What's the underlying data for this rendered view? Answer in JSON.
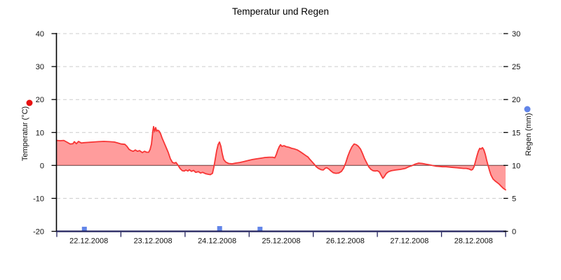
{
  "title": "Temperatur und Regen",
  "y_left": {
    "label": "Temperatur (°C)",
    "min": -20,
    "max": 40,
    "ticks": [
      40,
      30,
      20,
      10,
      0,
      -10,
      -20
    ],
    "grid_ticks": [
      40,
      30,
      20,
      10,
      -10
    ],
    "zero_line": 0
  },
  "y_right": {
    "label": "Regen (mm)",
    "min": 0,
    "max": 30,
    "ticks": [
      30,
      25,
      20,
      15,
      10,
      5,
      0
    ]
  },
  "x_axis": {
    "day_labels": [
      "22.12.2008",
      "23.12.2008",
      "24.12.2008",
      "25.12.2008",
      "26.12.2008",
      "27.12.2008",
      "28.12.2008"
    ]
  },
  "legend": {
    "temperature_marker_color": "#e81111",
    "rain_marker_color": "#6285e8"
  },
  "colors": {
    "temp_stroke": "#f73434",
    "temp_fill": "rgba(255,30,30,0.44)",
    "rain_bar": "#6285e8",
    "grid": "#cccccc",
    "zero_line": "#404040",
    "left_axis": "#000000",
    "x_axis": "#20205c",
    "text": "#111111"
  },
  "chart_data": {
    "type": "combo",
    "title": "Temperatur und Regen",
    "x": {
      "unit": "days since 22.12.2008 00:00",
      "range": [
        0,
        7
      ],
      "tick_dates": [
        "22.12.2008",
        "23.12.2008",
        "24.12.2008",
        "25.12.2008",
        "26.12.2008",
        "27.12.2008",
        "28.12.2008"
      ]
    },
    "y_left_axis": {
      "label": "Temperatur (°C)",
      "range": [
        -20,
        40
      ],
      "grid": "dashed"
    },
    "y_right_axis": {
      "label": "Regen (mm)",
      "range": [
        0,
        30
      ]
    },
    "legend_position": "axis-titles-with-dots",
    "series": [
      {
        "name": "Temperatur",
        "type": "area",
        "axis": "left",
        "unit": "°C",
        "baseline": 0,
        "points": [
          [
            0.0,
            7.6
          ],
          [
            0.055,
            7.5
          ],
          [
            0.109,
            7.6
          ],
          [
            0.164,
            7.0
          ],
          [
            0.208,
            6.5
          ],
          [
            0.252,
            6.6
          ],
          [
            0.273,
            7.2
          ],
          [
            0.306,
            6.6
          ],
          [
            0.339,
            7.3
          ],
          [
            0.383,
            6.8
          ],
          [
            0.427,
            6.9
          ],
          [
            0.492,
            7.0
          ],
          [
            0.569,
            7.1
          ],
          [
            0.645,
            7.2
          ],
          [
            0.733,
            7.3
          ],
          [
            0.82,
            7.2
          ],
          [
            0.897,
            7.1
          ],
          [
            0.952,
            6.8
          ],
          [
            1.006,
            6.5
          ],
          [
            1.061,
            6.4
          ],
          [
            1.094,
            5.8
          ],
          [
            1.127,
            4.9
          ],
          [
            1.159,
            4.5
          ],
          [
            1.192,
            4.3
          ],
          [
            1.225,
            4.7
          ],
          [
            1.258,
            4.3
          ],
          [
            1.291,
            4.5
          ],
          [
            1.334,
            3.9
          ],
          [
            1.367,
            4.3
          ],
          [
            1.4,
            4.0
          ],
          [
            1.433,
            4.0
          ],
          [
            1.455,
            4.8
          ],
          [
            1.477,
            6.5
          ],
          [
            1.498,
            10.5
          ],
          [
            1.509,
            11.8
          ],
          [
            1.526,
            10.3
          ],
          [
            1.542,
            11.5
          ],
          [
            1.559,
            10.4
          ],
          [
            1.575,
            10.7
          ],
          [
            1.597,
            10.4
          ],
          [
            1.619,
            9.6
          ],
          [
            1.641,
            8.4
          ],
          [
            1.673,
            6.9
          ],
          [
            1.706,
            5.4
          ],
          [
            1.739,
            3.9
          ],
          [
            1.772,
            2.0
          ],
          [
            1.805,
            0.9
          ],
          [
            1.837,
            0.7
          ],
          [
            1.859,
            0.9
          ],
          [
            1.892,
            0.0
          ],
          [
            1.925,
            -1.0
          ],
          [
            1.958,
            -1.6
          ],
          [
            1.991,
            -1.7
          ],
          [
            2.012,
            -1.4
          ],
          [
            2.045,
            -1.7
          ],
          [
            2.067,
            -1.3
          ],
          [
            2.1,
            -1.8
          ],
          [
            2.133,
            -1.5
          ],
          [
            2.166,
            -2.1
          ],
          [
            2.209,
            -1.9
          ],
          [
            2.242,
            -2.3
          ],
          [
            2.275,
            -2.1
          ],
          [
            2.319,
            -2.5
          ],
          [
            2.363,
            -2.7
          ],
          [
            2.395,
            -2.8
          ],
          [
            2.428,
            -2.4
          ],
          [
            2.45,
            -0.5
          ],
          [
            2.472,
            2.0
          ],
          [
            2.494,
            4.5
          ],
          [
            2.516,
            6.3
          ],
          [
            2.537,
            7.1
          ],
          [
            2.559,
            5.8
          ],
          [
            2.581,
            3.5
          ],
          [
            2.603,
            1.8
          ],
          [
            2.636,
            1.0
          ],
          [
            2.68,
            0.6
          ],
          [
            2.734,
            0.5
          ],
          [
            2.789,
            0.7
          ],
          [
            2.855,
            0.9
          ],
          [
            2.92,
            1.2
          ],
          [
            2.986,
            1.5
          ],
          [
            3.051,
            1.8
          ],
          [
            3.117,
            2.0
          ],
          [
            3.183,
            2.2
          ],
          [
            3.248,
            2.4
          ],
          [
            3.314,
            2.5
          ],
          [
            3.369,
            2.5
          ],
          [
            3.401,
            2.3
          ],
          [
            3.423,
            3.3
          ],
          [
            3.445,
            4.6
          ],
          [
            3.467,
            5.6
          ],
          [
            3.489,
            6.3
          ],
          [
            3.511,
            5.8
          ],
          [
            3.544,
            6.0
          ],
          [
            3.577,
            5.7
          ],
          [
            3.62,
            5.5
          ],
          [
            3.664,
            5.2
          ],
          [
            3.708,
            5.0
          ],
          [
            3.752,
            4.7
          ],
          [
            3.795,
            4.2
          ],
          [
            3.839,
            3.6
          ],
          [
            3.883,
            3.0
          ],
          [
            3.916,
            2.6
          ],
          [
            3.949,
            1.8
          ],
          [
            3.982,
            1.1
          ],
          [
            4.014,
            0.4
          ],
          [
            4.047,
            -0.4
          ],
          [
            4.08,
            -0.9
          ],
          [
            4.124,
            -1.3
          ],
          [
            4.156,
            -1.4
          ],
          [
            4.189,
            -0.8
          ],
          [
            4.211,
            -0.7
          ],
          [
            4.244,
            -1.1
          ],
          [
            4.277,
            -1.7
          ],
          [
            4.31,
            -2.2
          ],
          [
            4.353,
            -2.4
          ],
          [
            4.397,
            -2.3
          ],
          [
            4.441,
            -1.8
          ],
          [
            4.474,
            -0.8
          ],
          [
            4.506,
            0.8
          ],
          [
            4.539,
            2.8
          ],
          [
            4.572,
            4.4
          ],
          [
            4.605,
            5.7
          ],
          [
            4.638,
            6.5
          ],
          [
            4.671,
            6.3
          ],
          [
            4.703,
            5.8
          ],
          [
            4.736,
            5.0
          ],
          [
            4.769,
            3.6
          ],
          [
            4.802,
            2.0
          ],
          [
            4.835,
            0.7
          ],
          [
            4.868,
            -0.5
          ],
          [
            4.9,
            -1.2
          ],
          [
            4.933,
            -1.6
          ],
          [
            4.966,
            -1.7
          ],
          [
            4.999,
            -1.6
          ],
          [
            5.032,
            -2.0
          ],
          [
            5.065,
            -3.2
          ],
          [
            5.086,
            -3.9
          ],
          [
            5.108,
            -3.4
          ],
          [
            5.141,
            -2.4
          ],
          [
            5.174,
            -1.9
          ],
          [
            5.218,
            -1.6
          ],
          [
            5.283,
            -1.4
          ],
          [
            5.36,
            -1.2
          ],
          [
            5.436,
            -0.9
          ],
          [
            5.491,
            -0.4
          ],
          [
            5.535,
            -0.1
          ],
          [
            5.59,
            0.4
          ],
          [
            5.644,
            0.7
          ],
          [
            5.699,
            0.6
          ],
          [
            5.753,
            0.4
          ],
          [
            5.808,
            0.2
          ],
          [
            5.852,
            0.0
          ],
          [
            5.907,
            -0.2
          ],
          [
            5.961,
            -0.3
          ],
          [
            6.016,
            -0.4
          ],
          [
            6.071,
            -0.4
          ],
          [
            6.125,
            -0.5
          ],
          [
            6.18,
            -0.6
          ],
          [
            6.235,
            -0.7
          ],
          [
            6.289,
            -0.8
          ],
          [
            6.344,
            -0.9
          ],
          [
            6.388,
            -0.9
          ],
          [
            6.431,
            -1.1
          ],
          [
            6.464,
            -1.4
          ],
          [
            6.486,
            -1.2
          ],
          [
            6.508,
            -0.4
          ],
          [
            6.53,
            1.2
          ],
          [
            6.552,
            2.8
          ],
          [
            6.574,
            4.3
          ],
          [
            6.596,
            5.2
          ],
          [
            6.617,
            5.0
          ],
          [
            6.639,
            5.4
          ],
          [
            6.661,
            4.7
          ],
          [
            6.683,
            3.4
          ],
          [
            6.705,
            1.6
          ],
          [
            6.727,
            0.0
          ],
          [
            6.749,
            -1.6
          ],
          [
            6.771,
            -2.9
          ],
          [
            6.803,
            -4.1
          ],
          [
            6.836,
            -4.7
          ],
          [
            6.869,
            -5.2
          ],
          [
            6.902,
            -5.7
          ],
          [
            6.935,
            -6.4
          ],
          [
            6.967,
            -7.0
          ],
          [
            7.0,
            -7.4
          ]
        ]
      },
      {
        "name": "Regen",
        "type": "bar",
        "axis": "right",
        "unit": "mm",
        "bar_width_days": 0.077,
        "points": [
          [
            0.43,
            0.7
          ],
          [
            2.54,
            0.8
          ],
          [
            3.17,
            0.7
          ]
        ]
      }
    ]
  }
}
